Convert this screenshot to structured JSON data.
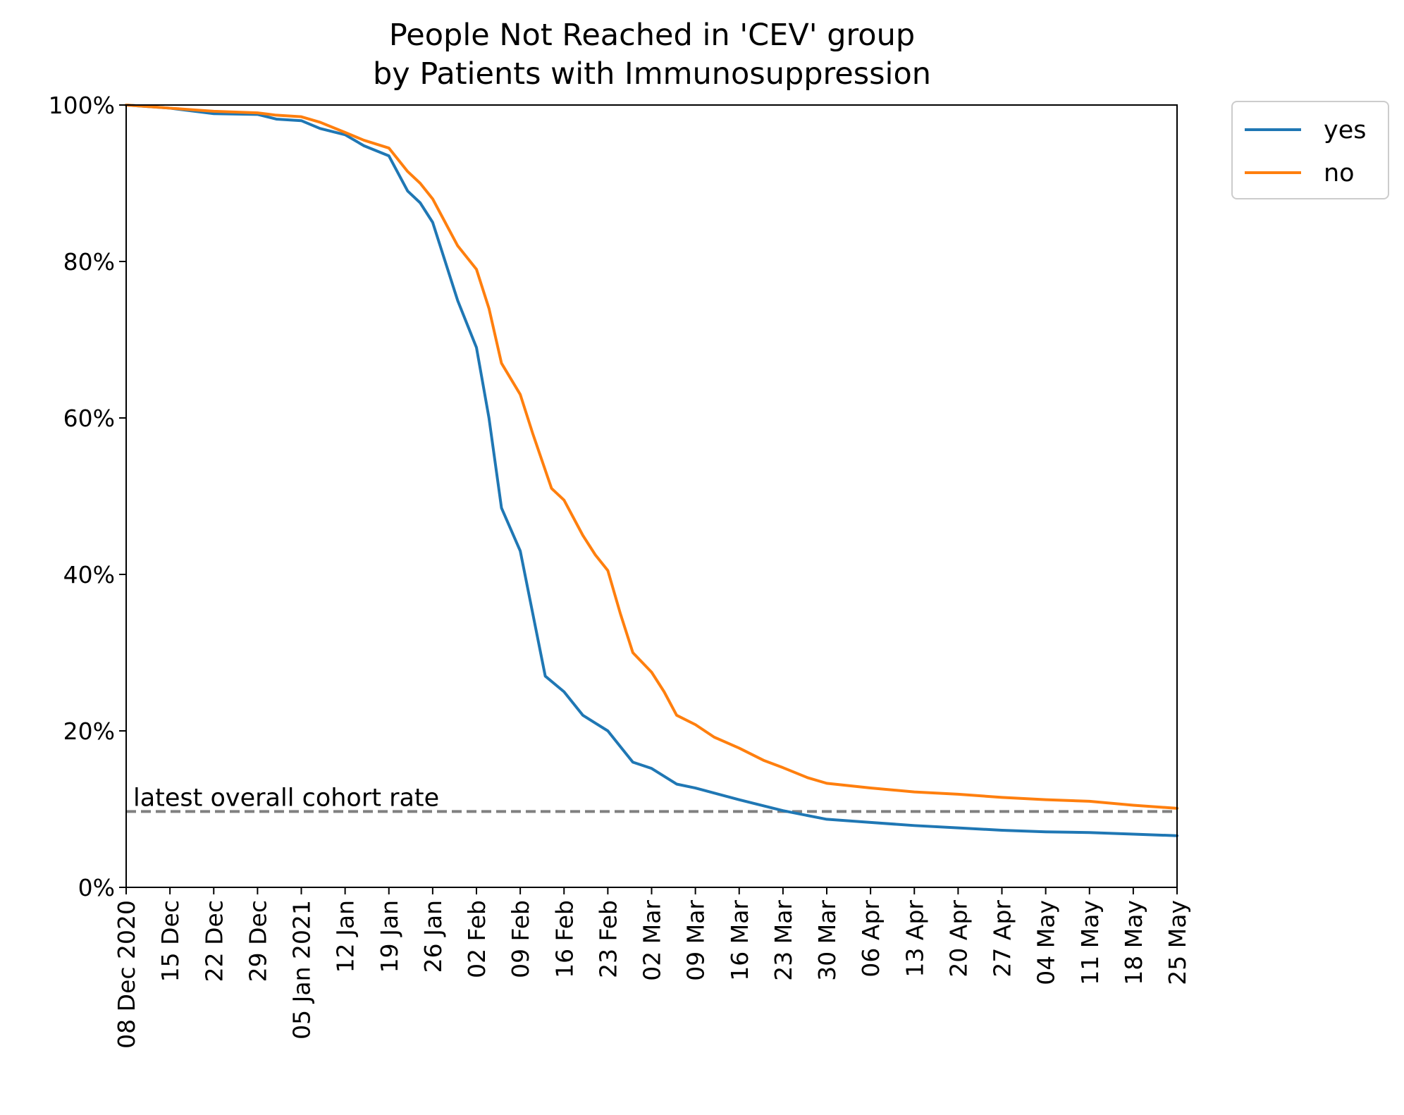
{
  "chart_data": {
    "type": "line",
    "title": "People Not Reached in 'CEV' group",
    "subtitle": "by Patients with Immunosuppression",
    "xlabel": "",
    "ylabel": "",
    "x_range": [
      "2020-12-08",
      "2021-05-25"
    ],
    "ylim": [
      0,
      100
    ],
    "y_ticks": [
      0,
      20,
      40,
      60,
      80,
      100
    ],
    "y_tick_labels": [
      "0%",
      "20%",
      "40%",
      "60%",
      "80%",
      "100%"
    ],
    "x_ticks": [
      "2020-12-08",
      "2020-12-15",
      "2020-12-22",
      "2020-12-29",
      "2021-01-05",
      "2021-01-12",
      "2021-01-19",
      "2021-01-26",
      "2021-02-02",
      "2021-02-09",
      "2021-02-16",
      "2021-02-23",
      "2021-03-02",
      "2021-03-09",
      "2021-03-16",
      "2021-03-23",
      "2021-03-30",
      "2021-04-06",
      "2021-04-13",
      "2021-04-20",
      "2021-04-27",
      "2021-05-04",
      "2021-05-11",
      "2021-05-18",
      "2021-05-25"
    ],
    "x_tick_labels": [
      "08 Dec 2020",
      "15 Dec",
      "22 Dec",
      "29 Dec",
      "05 Jan 2021",
      "12 Jan",
      "19 Jan",
      "26 Jan",
      "02 Feb",
      "09 Feb",
      "16 Feb",
      "23 Feb",
      "02 Mar",
      "09 Mar",
      "16 Mar",
      "23 Mar",
      "30 Mar",
      "06 Apr",
      "13 Apr",
      "20 Apr",
      "27 Apr",
      "04 May",
      "11 May",
      "18 May",
      "25 May"
    ],
    "grid": false,
    "legend": {
      "placement": "outside-top-right",
      "entries": [
        "yes",
        "no"
      ]
    },
    "series": [
      {
        "name": "yes",
        "color": "#1f77b4",
        "points": [
          [
            "2020-12-08",
            100
          ],
          [
            "2020-12-15",
            99.6
          ],
          [
            "2020-12-22",
            98.9
          ],
          [
            "2020-12-29",
            98.8
          ],
          [
            "2021-01-01",
            98.2
          ],
          [
            "2021-01-05",
            98.0
          ],
          [
            "2021-01-08",
            97.0
          ],
          [
            "2021-01-12",
            96.2
          ],
          [
            "2021-01-15",
            94.8
          ],
          [
            "2021-01-19",
            93.5
          ],
          [
            "2021-01-22",
            89.0
          ],
          [
            "2021-01-24",
            87.5
          ],
          [
            "2021-01-26",
            85.0
          ],
          [
            "2021-01-28",
            80.0
          ],
          [
            "2021-01-30",
            75.0
          ],
          [
            "2021-02-02",
            69.0
          ],
          [
            "2021-02-04",
            60.0
          ],
          [
            "2021-02-06",
            48.5
          ],
          [
            "2021-02-09",
            43.0
          ],
          [
            "2021-02-11",
            35.0
          ],
          [
            "2021-02-13",
            27.0
          ],
          [
            "2021-02-16",
            25.0
          ],
          [
            "2021-02-19",
            22.0
          ],
          [
            "2021-02-21",
            21.0
          ],
          [
            "2021-02-23",
            20.0
          ],
          [
            "2021-02-25",
            18.0
          ],
          [
            "2021-02-27",
            16.0
          ],
          [
            "2021-03-02",
            15.2
          ],
          [
            "2021-03-06",
            13.2
          ],
          [
            "2021-03-09",
            12.7
          ],
          [
            "2021-03-16",
            11.2
          ],
          [
            "2021-03-23",
            9.8
          ],
          [
            "2021-03-30",
            8.7
          ],
          [
            "2021-04-06",
            8.3
          ],
          [
            "2021-04-13",
            7.9
          ],
          [
            "2021-04-20",
            7.6
          ],
          [
            "2021-04-27",
            7.3
          ],
          [
            "2021-05-04",
            7.1
          ],
          [
            "2021-05-11",
            7.0
          ],
          [
            "2021-05-18",
            6.8
          ],
          [
            "2021-05-25",
            6.6
          ]
        ]
      },
      {
        "name": "no",
        "color": "#ff7f0e",
        "points": [
          [
            "2020-12-08",
            100
          ],
          [
            "2020-12-15",
            99.6
          ],
          [
            "2020-12-22",
            99.2
          ],
          [
            "2020-12-29",
            99.0
          ],
          [
            "2021-01-01",
            98.7
          ],
          [
            "2021-01-05",
            98.5
          ],
          [
            "2021-01-08",
            97.8
          ],
          [
            "2021-01-12",
            96.5
          ],
          [
            "2021-01-15",
            95.5
          ],
          [
            "2021-01-19",
            94.5
          ],
          [
            "2021-01-22",
            91.5
          ],
          [
            "2021-01-24",
            90.0
          ],
          [
            "2021-01-26",
            88.0
          ],
          [
            "2021-01-28",
            85.0
          ],
          [
            "2021-01-30",
            82.0
          ],
          [
            "2021-02-02",
            79.0
          ],
          [
            "2021-02-04",
            74.0
          ],
          [
            "2021-02-06",
            67.0
          ],
          [
            "2021-02-09",
            63.0
          ],
          [
            "2021-02-11",
            58.0
          ],
          [
            "2021-02-14",
            51.0
          ],
          [
            "2021-02-16",
            49.5
          ],
          [
            "2021-02-19",
            45.0
          ],
          [
            "2021-02-21",
            42.5
          ],
          [
            "2021-02-23",
            40.5
          ],
          [
            "2021-02-25",
            35.0
          ],
          [
            "2021-02-27",
            30.0
          ],
          [
            "2021-03-02",
            27.5
          ],
          [
            "2021-03-04",
            25.0
          ],
          [
            "2021-03-06",
            22.0
          ],
          [
            "2021-03-09",
            20.8
          ],
          [
            "2021-03-12",
            19.2
          ],
          [
            "2021-03-16",
            17.8
          ],
          [
            "2021-03-20",
            16.2
          ],
          [
            "2021-03-23",
            15.3
          ],
          [
            "2021-03-27",
            14.0
          ],
          [
            "2021-03-30",
            13.3
          ],
          [
            "2021-04-06",
            12.7
          ],
          [
            "2021-04-13",
            12.2
          ],
          [
            "2021-04-20",
            11.9
          ],
          [
            "2021-04-27",
            11.5
          ],
          [
            "2021-05-04",
            11.2
          ],
          [
            "2021-05-11",
            11.0
          ],
          [
            "2021-05-18",
            10.5
          ],
          [
            "2021-05-25",
            10.1
          ]
        ]
      }
    ],
    "reference_line": {
      "value": 9.7,
      "color": "#808080",
      "style": "dashed",
      "label": "latest overall cohort rate"
    }
  }
}
